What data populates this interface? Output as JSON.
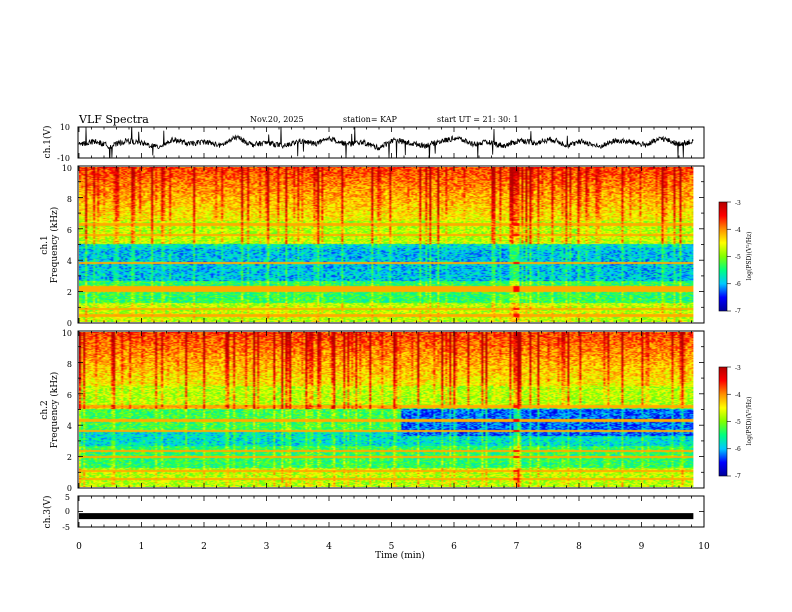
{
  "header": {
    "title": "VLF Spectra",
    "date": "Nov.20, 2025",
    "station": "station= KAP",
    "start": "start  UT  =   21: 30: 1"
  },
  "chart_data": [
    {
      "id": "ch1-waveform",
      "type": "line",
      "ylabel": "ch.1(V)",
      "ylim": [
        -10,
        10
      ],
      "yticks": [
        "10",
        "-10"
      ],
      "xlim": [
        0,
        10
      ],
      "data_end_min": 9.83,
      "series_samples": [
        -1.5,
        0.8,
        -2.5,
        1.2,
        -0.5,
        -3.0,
        2.0,
        -1.0,
        0.5,
        -2.0,
        3.5,
        -1.5,
        0.0,
        -2.5,
        1.0,
        -0.8,
        2.5,
        -1.2,
        0.3,
        -3.5,
        1.8,
        -0.5,
        -2.0,
        0.9,
        3.0,
        -1.0,
        0.2,
        -2.2,
        1.5,
        -0.3,
        2.2,
        -1.8,
        0.7,
        -2.8,
        1.1,
        0.4,
        -1.6,
        2.8,
        -0.9,
        0.6
      ]
    },
    {
      "id": "ch1-spectrogram",
      "type": "heatmap",
      "ylabel_top": "ch.1",
      "ylabel": "Frequency (kHz)",
      "ylim": [
        0,
        10
      ],
      "yticks": [
        "0",
        "2",
        "4",
        "6",
        "8",
        "10"
      ],
      "xlim": [
        0,
        10
      ],
      "data_end_min": 9.83,
      "colorbar": {
        "label": "log(PSD)(V²/Hz)",
        "range": [
          -7,
          -3
        ],
        "ticks": [
          "-3",
          "-4",
          "-5",
          "-6",
          "-7"
        ]
      }
    },
    {
      "id": "ch2-spectrogram",
      "type": "heatmap",
      "ylabel_top": "ch.2",
      "ylabel": "Frequency (kHz)",
      "ylim": [
        0,
        10
      ],
      "yticks": [
        "0",
        "2",
        "4",
        "6",
        "8",
        "10"
      ],
      "xlim": [
        0,
        10
      ],
      "data_end_min": 9.83,
      "colorbar": {
        "label": "log(PSD)(V²/Hz)",
        "range": [
          -7,
          -3
        ],
        "ticks": [
          "-3",
          "-4",
          "-5",
          "-6",
          "-7"
        ]
      }
    },
    {
      "id": "ch3-waveform",
      "type": "line",
      "ylabel": "ch.3(V)",
      "ylim": [
        -5,
        5
      ],
      "yticks": [
        "5",
        "0",
        "-5"
      ],
      "xlim": [
        0,
        10
      ],
      "data_end_min": 9.83,
      "constant_value": -1.5
    }
  ],
  "xaxis": {
    "label": "Time  (min)",
    "ticks": [
      "0",
      "1",
      "2",
      "3",
      "4",
      "5",
      "6",
      "7",
      "8",
      "9",
      "10"
    ]
  },
  "colors": {
    "line": "#000000",
    "colormap": [
      "#00009a",
      "#0000ff",
      "#00c8ff",
      "#00ff80",
      "#80ff00",
      "#ffff00",
      "#ff9000",
      "#ff0000",
      "#b40000"
    ]
  }
}
